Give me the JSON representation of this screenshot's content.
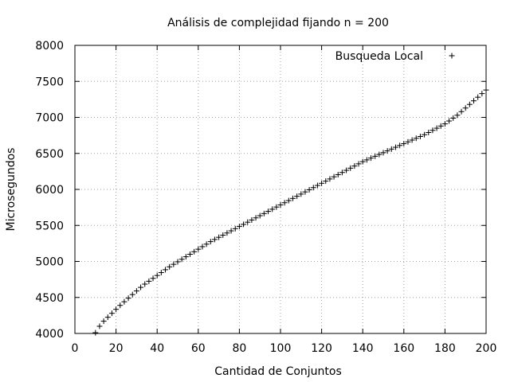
{
  "chart_data": {
    "type": "scatter",
    "title": "Análisis de complejidad fijando n = 200",
    "xlabel": "Cantidad de Conjuntos",
    "ylabel": "Microsegundos",
    "xlim": [
      0,
      200
    ],
    "ylim": [
      4000,
      8000
    ],
    "xticks": [
      "0",
      "20",
      "40",
      "60",
      "80",
      "100",
      "120",
      "140",
      "160",
      "180",
      "200"
    ],
    "yticks": [
      "4000",
      "4500",
      "5000",
      "5500",
      "6000",
      "6500",
      "7000",
      "7500",
      "8000"
    ],
    "grid": true,
    "legend_position": "top-right",
    "series": [
      {
        "name": "Busqueda Local",
        "marker": "+",
        "color": "#000000",
        "x": [
          10,
          12,
          14,
          16,
          18,
          20,
          22,
          24,
          26,
          28,
          30,
          32,
          34,
          36,
          38,
          40,
          42,
          44,
          46,
          48,
          50,
          52,
          54,
          56,
          58,
          60,
          62,
          64,
          66,
          68,
          70,
          72,
          74,
          76,
          78,
          80,
          82,
          84,
          86,
          88,
          90,
          92,
          94,
          96,
          98,
          100,
          102,
          104,
          106,
          108,
          110,
          112,
          114,
          116,
          118,
          120,
          122,
          124,
          126,
          128,
          130,
          132,
          134,
          136,
          138,
          140,
          142,
          144,
          146,
          148,
          150,
          152,
          154,
          156,
          158,
          160,
          162,
          164,
          166,
          168,
          170,
          172,
          174,
          176,
          178,
          180,
          182,
          184,
          186,
          188,
          190,
          192,
          194,
          196,
          198,
          200
        ],
        "y": [
          4010,
          4100,
          4170,
          4225,
          4280,
          4335,
          4390,
          4440,
          4490,
          4540,
          4590,
          4640,
          4685,
          4725,
          4765,
          4805,
          4845,
          4885,
          4925,
          4960,
          4995,
          5030,
          5065,
          5100,
          5135,
          5170,
          5205,
          5240,
          5275,
          5305,
          5335,
          5365,
          5395,
          5425,
          5455,
          5485,
          5515,
          5545,
          5575,
          5605,
          5635,
          5665,
          5695,
          5725,
          5755,
          5785,
          5815,
          5845,
          5875,
          5905,
          5935,
          5965,
          5995,
          6025,
          6055,
          6085,
          6115,
          6145,
          6175,
          6205,
          6235,
          6265,
          6295,
          6325,
          6355,
          6385,
          6410,
          6435,
          6460,
          6485,
          6510,
          6535,
          6560,
          6585,
          6610,
          6635,
          6660,
          6685,
          6710,
          6735,
          6760,
          6790,
          6820,
          6850,
          6880,
          6910,
          6950,
          6990,
          7030,
          7080,
          7130,
          7180,
          7230,
          7280,
          7330,
          7380
        ]
      }
    ]
  }
}
